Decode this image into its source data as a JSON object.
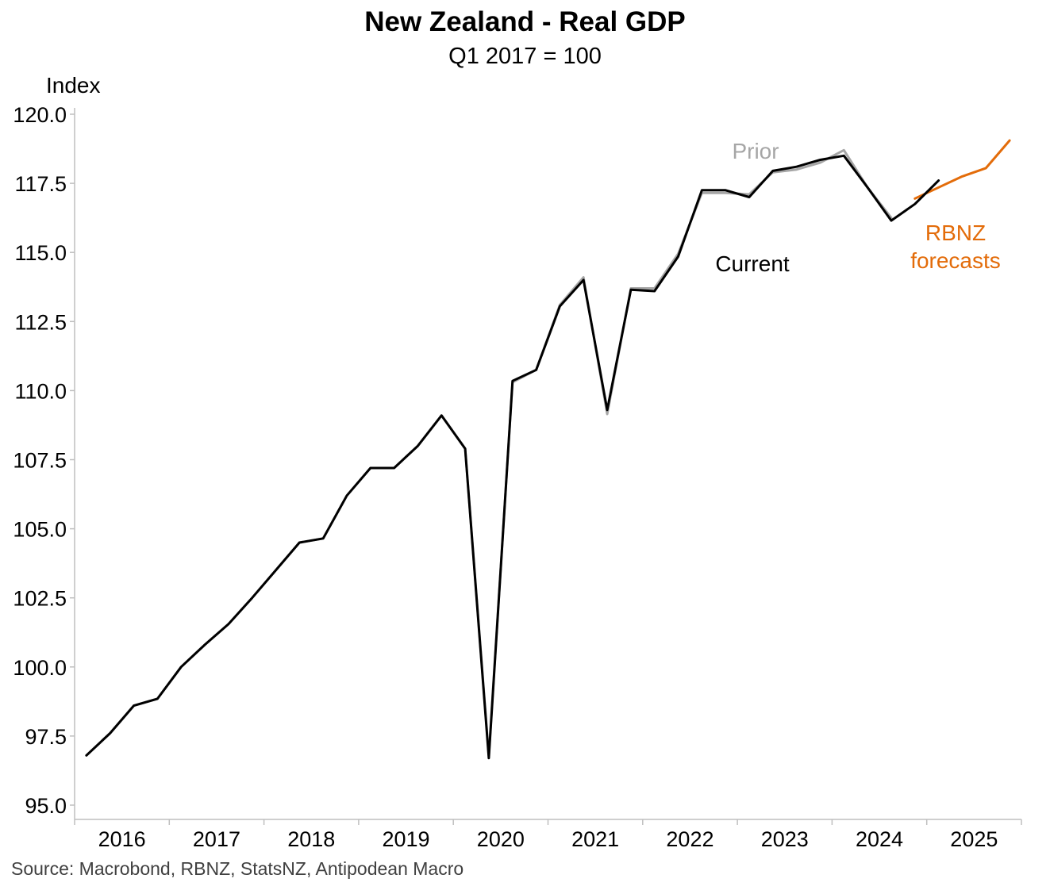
{
  "title": "New Zealand - Real GDP",
  "subtitle": "Q1 2017 = 100",
  "source": "Source: Macrobond, RBNZ, StatsNZ, Antipodean Macro",
  "colors": {
    "current": "#000000",
    "prior": "#a6a6a6",
    "forecast": "#e36c0a",
    "axis": "#bfbfbf"
  },
  "chart_data": {
    "type": "line",
    "title": "New Zealand - Real GDP",
    "subtitle": "Q1 2017 = 100",
    "ylabel": "Index",
    "xlabel": "",
    "ylim": [
      95.0,
      120.0
    ],
    "yticks": [
      "95.0",
      "97.5",
      "100.0",
      "102.5",
      "105.0",
      "107.5",
      "110.0",
      "112.5",
      "115.0",
      "117.5",
      "120.0"
    ],
    "x_tick_labels": [
      "2016",
      "2017",
      "2018",
      "2019",
      "2020",
      "2021",
      "2022",
      "2023",
      "2024",
      "2025"
    ],
    "grid": false,
    "legend": "inline labels",
    "series": [
      {
        "name": "Current",
        "label": "Current",
        "color": "#000000",
        "x": [
          "2016-Q1",
          "2016-Q2",
          "2016-Q3",
          "2016-Q4",
          "2017-Q1",
          "2017-Q2",
          "2017-Q3",
          "2017-Q4",
          "2018-Q1",
          "2018-Q2",
          "2018-Q3",
          "2018-Q4",
          "2019-Q1",
          "2019-Q2",
          "2019-Q3",
          "2019-Q4",
          "2020-Q1",
          "2020-Q2",
          "2020-Q3",
          "2020-Q4",
          "2021-Q1",
          "2021-Q2",
          "2021-Q3",
          "2021-Q4",
          "2022-Q1",
          "2022-Q2",
          "2022-Q3",
          "2022-Q4",
          "2023-Q1",
          "2023-Q2",
          "2023-Q3",
          "2023-Q4",
          "2024-Q1",
          "2024-Q2",
          "2024-Q3",
          "2024-Q4",
          "2025-Q1",
          "2025-Q2"
        ],
        "values": [
          96.8,
          97.6,
          98.6,
          98.85,
          100.0,
          100.8,
          101.55,
          102.5,
          103.5,
          104.5,
          104.65,
          106.2,
          107.2,
          107.2,
          108.0,
          109.1,
          107.9,
          96.7,
          110.35,
          110.75,
          113.05,
          114.0,
          109.3,
          113.65,
          113.6,
          114.85,
          117.25,
          117.25,
          117.0,
          117.95,
          118.1,
          118.35,
          118.5,
          117.35,
          116.15,
          116.75,
          117.6,
          null
        ]
      },
      {
        "name": "Prior",
        "label": "Prior",
        "color": "#a6a6a6",
        "x": [
          "2016-Q1",
          "2016-Q2",
          "2016-Q3",
          "2016-Q4",
          "2017-Q1",
          "2017-Q2",
          "2017-Q3",
          "2017-Q4",
          "2018-Q1",
          "2018-Q2",
          "2018-Q3",
          "2018-Q4",
          "2019-Q1",
          "2019-Q2",
          "2019-Q3",
          "2019-Q4",
          "2020-Q1",
          "2020-Q2",
          "2020-Q3",
          "2020-Q4",
          "2021-Q1",
          "2021-Q2",
          "2021-Q3",
          "2021-Q4",
          "2022-Q1",
          "2022-Q2",
          "2022-Q3",
          "2022-Q4",
          "2023-Q1",
          "2023-Q2",
          "2023-Q3",
          "2023-Q4",
          "2024-Q1",
          "2024-Q2",
          "2024-Q3",
          "2024-Q4",
          "2025-Q1",
          "2025-Q2"
        ],
        "values": [
          96.8,
          97.6,
          98.6,
          98.85,
          100.0,
          100.8,
          101.55,
          102.5,
          103.5,
          104.5,
          104.65,
          106.2,
          107.2,
          107.2,
          108.0,
          109.1,
          107.9,
          96.8,
          110.3,
          110.75,
          113.1,
          114.1,
          109.15,
          113.7,
          113.7,
          114.95,
          117.15,
          117.15,
          117.1,
          117.9,
          118.0,
          118.25,
          118.7,
          117.35,
          116.25,
          null,
          null,
          null
        ]
      },
      {
        "name": "RBNZ forecasts",
        "label": "RBNZ forecasts",
        "color": "#e36c0a",
        "x": [
          "2024-Q4",
          "2025-Q1",
          "2025-Q2",
          "2025-Q3",
          "2025-Q4"
        ],
        "values": [
          116.95,
          117.35,
          117.75,
          118.05,
          119.05
        ]
      }
    ],
    "annotations": [
      {
        "text": "Prior",
        "color": "#a6a6a6"
      },
      {
        "text": "Current",
        "color": "#000000"
      },
      {
        "text_lines": [
          "RBNZ",
          "forecasts"
        ],
        "color": "#e36c0a"
      }
    ]
  }
}
